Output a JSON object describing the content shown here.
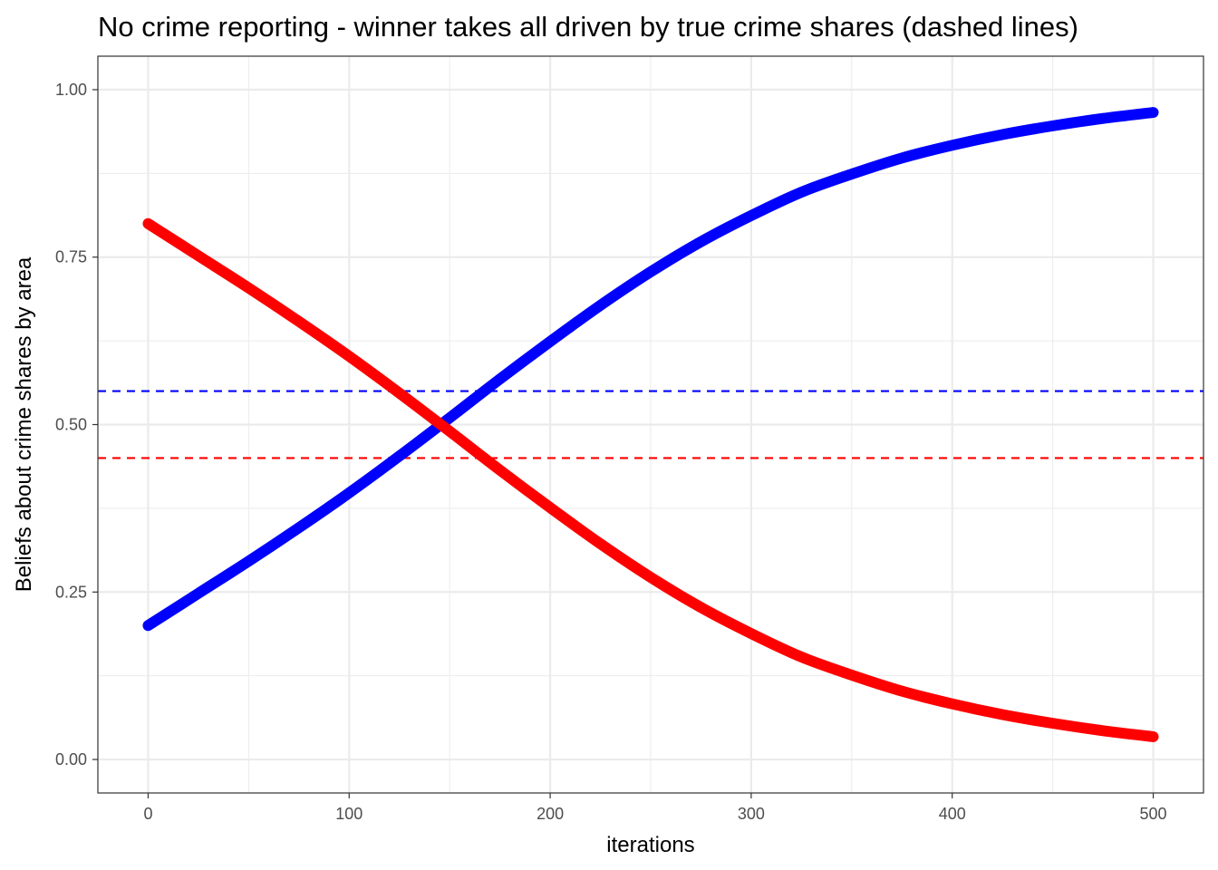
{
  "chart_data": {
    "type": "line",
    "title": "No crime reporting - winner takes all driven by true crime shares (dashed lines)",
    "xlabel": "iterations",
    "ylabel": "Beliefs about crime shares by area",
    "xlim": [
      -25,
      525
    ],
    "ylim": [
      -0.05,
      1.05
    ],
    "x_ticks": [
      0,
      100,
      200,
      300,
      400,
      500
    ],
    "x_tick_labels": [
      "0",
      "100",
      "200",
      "300",
      "400",
      "500"
    ],
    "y_ticks": [
      0,
      0.25,
      0.5,
      0.75,
      1.0
    ],
    "y_tick_labels": [
      "0.00",
      "0.25",
      "0.50",
      "0.75",
      "1.00"
    ],
    "grid": true,
    "legend": "none",
    "series": [
      {
        "color": "#0000FF",
        "style": "solid",
        "x": [
          0,
          25,
          50,
          75,
          100,
          125,
          150,
          175,
          200,
          225,
          250,
          275,
          300,
          325,
          350,
          375,
          400,
          425,
          450,
          475,
          500
        ],
        "values": [
          0.2,
          0.248,
          0.296,
          0.346,
          0.398,
          0.453,
          0.51,
          0.568,
          0.624,
          0.678,
          0.728,
          0.773,
          0.812,
          0.847,
          0.874,
          0.898,
          0.917,
          0.933,
          0.946,
          0.957,
          0.966
        ]
      },
      {
        "color": "#FF0000",
        "style": "solid",
        "x": [
          0,
          25,
          50,
          75,
          100,
          125,
          150,
          175,
          200,
          225,
          250,
          275,
          300,
          325,
          350,
          375,
          400,
          425,
          450,
          475,
          500
        ],
        "values": [
          0.8,
          0.752,
          0.704,
          0.654,
          0.602,
          0.547,
          0.49,
          0.432,
          0.376,
          0.322,
          0.272,
          0.227,
          0.188,
          0.153,
          0.126,
          0.102,
          0.083,
          0.067,
          0.054,
          0.043,
          0.034
        ]
      }
    ],
    "hlines": [
      {
        "y": 0.55,
        "color": "#0000FF",
        "style": "dashed"
      },
      {
        "y": 0.45,
        "color": "#FF0000",
        "style": "dashed"
      }
    ]
  }
}
